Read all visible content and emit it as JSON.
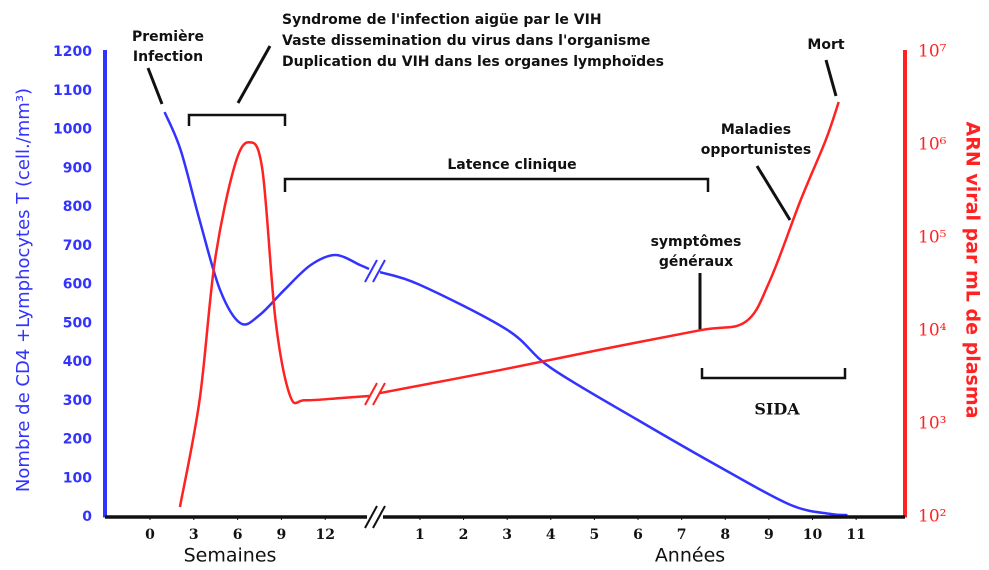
{
  "chart_data": {
    "type": "line",
    "y_label": "Nombre de CD4 +Lymphocytes T (cell./mm³)",
    "y2_label": "ARN viral par mL de plasma",
    "ylim": [
      0,
      1200
    ],
    "yticks": [
      0,
      100,
      200,
      300,
      400,
      500,
      600,
      700,
      800,
      900,
      1000,
      1100,
      1200
    ],
    "y2lim": [
      100,
      10000000
    ],
    "y2_log": true,
    "y2ticks": [
      {
        "value": 100,
        "label": "10²"
      },
      {
        "value": 1000,
        "label": "10³"
      },
      {
        "value": 10000,
        "label": "10⁴"
      },
      {
        "value": 100000,
        "label": "10⁵"
      },
      {
        "value": 1000000,
        "label": "10⁶"
      },
      {
        "value": 10000000,
        "label": "10⁷"
      }
    ],
    "y_color": "#3333ff",
    "y2_color": "#ff2222",
    "segments": [
      {
        "label": "Semaines",
        "xlim": [
          -3.08,
          15.41
        ],
        "xticks": [
          0,
          3,
          6,
          9,
          12
        ],
        "series": [
          {
            "color": "#3333ff",
            "x": [
              1.0,
              2.1,
              3.4,
              4.8,
              6.2,
              7.5,
              9.2,
              11.0,
              12.7,
              14.4,
              15.0
            ],
            "values": [
              1045,
              947,
              766,
              586,
              500,
              521,
              586,
              650,
              676,
              650,
              640
            ]
          },
          {
            "color": "#ff2222",
            "axis": "y2",
            "x": [
              2.05,
              3.4,
              4.45,
              5.8,
              6.8,
              7.7,
              8.6,
              9.6,
              10.6,
              13.0,
              15.0
            ],
            "values": [
              128,
              1820,
              57500,
              600000,
              1070000,
              540000,
              13000,
              2000,
              1800,
              1900,
              2000
            ]
          }
        ]
      },
      {
        "label": "Années",
        "xlim": [
          -0.03,
          12.12
        ],
        "xticks": [
          1,
          2,
          3,
          4,
          5,
          6,
          7,
          8,
          9,
          10,
          11
        ],
        "series": [
          {
            "color": "#3333ff",
            "x": [
              0.08,
              1,
              3,
              4,
              6,
              8,
              9.5,
              10.4,
              10.8
            ],
            "values": [
              632,
              599,
              483,
              385,
              250,
              121,
              31,
              8,
              5
            ]
          },
          {
            "color": "#ff2222",
            "axis": "y2",
            "x": [
              0.08,
              2.84,
              5.14,
              7.43,
              8.47,
              9.03,
              9.73,
              10.3,
              10.6
            ],
            "values": [
              2150,
              3800,
              6300,
              10200,
              12600,
              35500,
              257000,
              1120000,
              2900000
            ]
          }
        ]
      }
    ],
    "annotations": {
      "infection": [
        "Première",
        "Infection"
      ],
      "syndrome": [
        "Syndrome de l'infection aigüe par le VIH",
        "Vaste dissemination du virus dans l'organisme",
        "Duplication du VIH dans les organes lymphoïdes"
      ],
      "latence": "Latence clinique",
      "symptomes": [
        "symptômes",
        "généraux"
      ],
      "maladies": [
        "Maladies",
        "opportunistes"
      ],
      "mort": "Mort",
      "sida": "SIDA"
    }
  }
}
